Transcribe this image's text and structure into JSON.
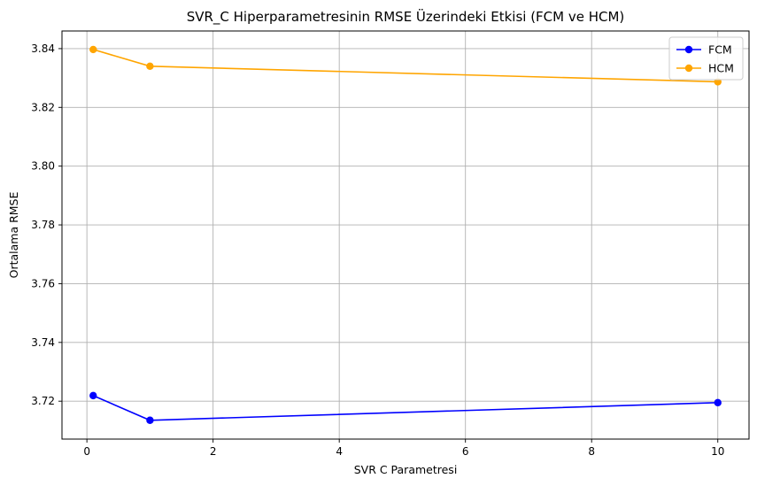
{
  "chart_data": {
    "type": "line",
    "title": "SVR_C Hiperparametresinin RMSE Üzerindeki Etkisi (FCM ve HCM)",
    "xlabel": "SVR C Parametresi",
    "ylabel": "Ortalama RMSE",
    "x": [
      0.1,
      1,
      10
    ],
    "xlim": [
      -0.395,
      10.495
    ],
    "ylim": [
      3.7071,
      3.846
    ],
    "xticks": [
      0,
      2,
      4,
      6,
      8,
      10
    ],
    "yticks": [
      3.72,
      3.74,
      3.76,
      3.78,
      3.8,
      3.82,
      3.84
    ],
    "xtick_labels": [
      "0",
      "2",
      "4",
      "6",
      "8",
      "10"
    ],
    "ytick_labels": [
      "3.72",
      "3.74",
      "3.76",
      "3.78",
      "3.80",
      "3.82",
      "3.84"
    ],
    "grid": true,
    "legend_position": "top-right",
    "series": [
      {
        "name": "FCM",
        "color": "#0000ff",
        "values": [
          3.7219,
          3.7135,
          3.7195
        ]
      },
      {
        "name": "HCM",
        "color": "#ffa500",
        "values": [
          3.8397,
          3.834,
          3.8287
        ]
      }
    ]
  }
}
